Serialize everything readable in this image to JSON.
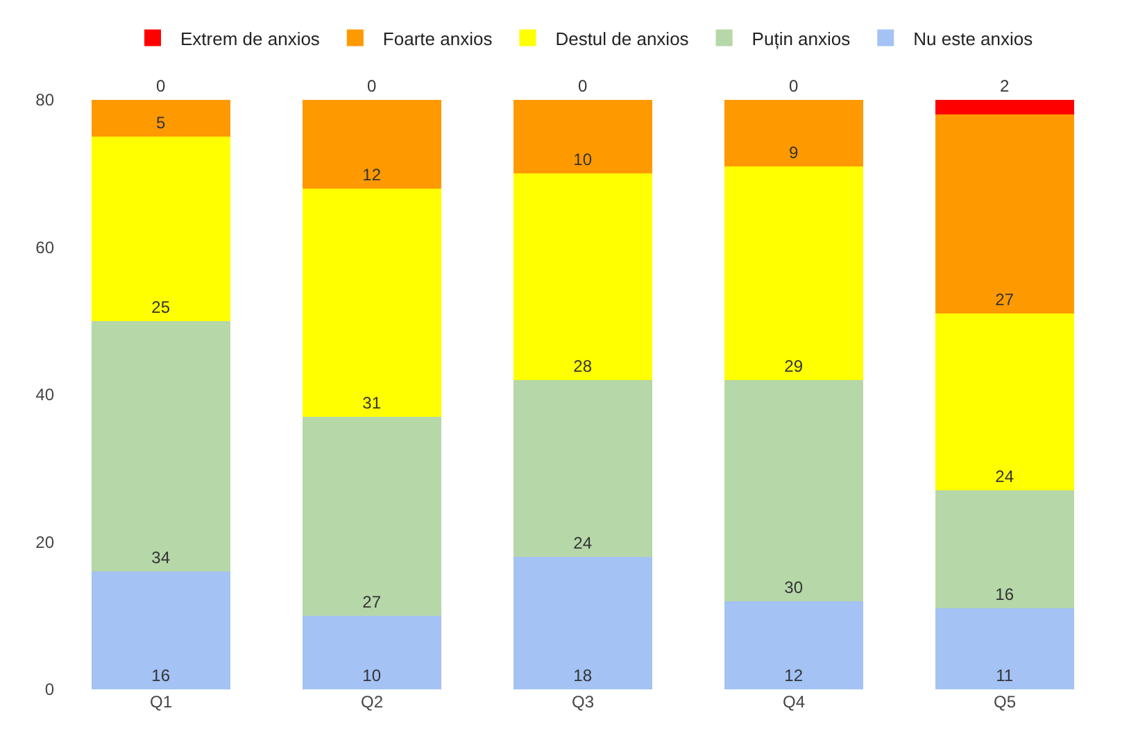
{
  "chart_data": {
    "type": "bar",
    "stacked": true,
    "data_labels": true,
    "legend": "top",
    "categories": [
      "Q1",
      "Q2",
      "Q3",
      "Q4",
      "Q5"
    ],
    "ylim": [
      0,
      80
    ],
    "yticks": [
      0,
      20,
      40,
      60,
      80
    ],
    "series": [
      {
        "name": "Nu este anxios",
        "color": "#a4c2f4",
        "values": [
          16,
          10,
          18,
          12,
          11
        ]
      },
      {
        "name": "Puțin anxios",
        "color": "#b6d7a8",
        "values": [
          34,
          27,
          24,
          30,
          16
        ]
      },
      {
        "name": "Destul de anxios",
        "color": "#ffff00",
        "values": [
          25,
          31,
          28,
          29,
          24
        ]
      },
      {
        "name": "Foarte anxios",
        "color": "#ff9900",
        "values": [
          5,
          12,
          10,
          9,
          27
        ]
      },
      {
        "name": "Extrem de anxios",
        "color": "#ff0000",
        "values": [
          0,
          0,
          0,
          0,
          2
        ]
      }
    ]
  }
}
